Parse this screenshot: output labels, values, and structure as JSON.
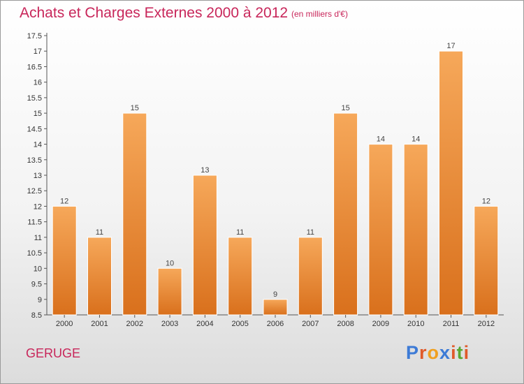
{
  "header": {
    "title": "Achats et Charges Externes 2000 à 2012",
    "unit": "(en milliers d'€)"
  },
  "footer": {
    "commune": "GERUGE",
    "brand": "Proxiti"
  },
  "colors": {
    "title": "#c8265a",
    "bar_light": "#f6a85a",
    "bar_dark": "#d9701c"
  },
  "chart_data": {
    "type": "bar",
    "title": "Achats et Charges Externes 2000 à 2012",
    "subtitle": "(en milliers d'€)",
    "categories": [
      "2000",
      "2001",
      "2002",
      "2003",
      "2004",
      "2005",
      "2006",
      "2007",
      "2008",
      "2009",
      "2010",
      "2011",
      "2012"
    ],
    "values": [
      12,
      11,
      15,
      10,
      13,
      11,
      9,
      11,
      15,
      14,
      14,
      17,
      12
    ],
    "ylim": [
      8.5,
      17.5
    ],
    "yticks": [
      8.5,
      9,
      9.5,
      10,
      10.5,
      11,
      11.5,
      12,
      12.5,
      13,
      13.5,
      14,
      14.5,
      15,
      15.5,
      16,
      16.5,
      17,
      17.5
    ],
    "grid": false,
    "xlabel": "",
    "ylabel": ""
  }
}
